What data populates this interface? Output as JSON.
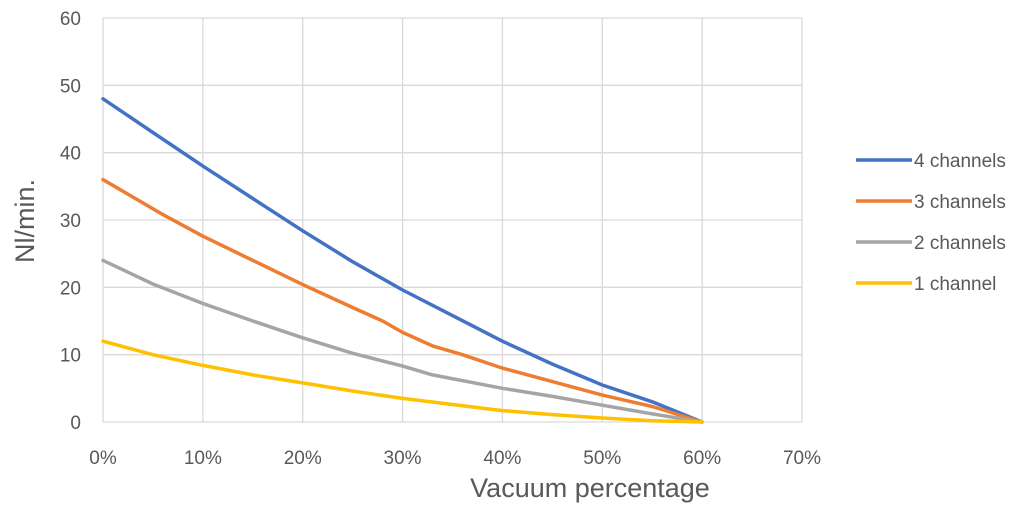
{
  "chart_data": {
    "type": "line",
    "title": "",
    "xlabel": "Vacuum percentage",
    "ylabel": "Nl/min.",
    "xlim": [
      0,
      70
    ],
    "ylim": [
      0,
      60
    ],
    "x_ticks": [
      "0%",
      "10%",
      "20%",
      "30%",
      "40%",
      "50%",
      "60%",
      "70%"
    ],
    "y_ticks": [
      "0",
      "10",
      "20",
      "30",
      "40",
      "50",
      "60"
    ],
    "grid": true,
    "legend_position": "right",
    "series": [
      {
        "name": "4 channels",
        "color": "#4472C4",
        "points": [
          [
            0,
            48
          ],
          [
            5,
            43
          ],
          [
            10,
            38
          ],
          [
            15,
            33.2
          ],
          [
            20,
            28.4
          ],
          [
            25,
            23.8
          ],
          [
            30,
            19.6
          ],
          [
            35,
            15.8
          ],
          [
            40,
            12
          ],
          [
            45,
            8.6
          ],
          [
            50,
            5.5
          ],
          [
            55,
            3
          ],
          [
            60,
            0
          ]
        ]
      },
      {
        "name": "3 channels",
        "color": "#ED7D31",
        "points": [
          [
            0,
            36
          ],
          [
            6,
            30.8
          ],
          [
            10,
            27.6
          ],
          [
            15,
            24
          ],
          [
            20,
            20.4
          ],
          [
            25,
            17
          ],
          [
            28,
            15
          ],
          [
            30,
            13.3
          ],
          [
            33,
            11.3
          ],
          [
            36,
            10
          ],
          [
            40,
            8
          ],
          [
            45,
            6
          ],
          [
            50,
            4
          ],
          [
            55,
            2.3
          ],
          [
            60,
            0
          ]
        ]
      },
      {
        "name": "2 channels",
        "color": "#A5A5A5",
        "points": [
          [
            0,
            24
          ],
          [
            5,
            20.5
          ],
          [
            10,
            17.6
          ],
          [
            15,
            15
          ],
          [
            20,
            12.5
          ],
          [
            25,
            10.2
          ],
          [
            30,
            8.3
          ],
          [
            33,
            7
          ],
          [
            40,
            5
          ],
          [
            45,
            3.8
          ],
          [
            50,
            2.5
          ],
          [
            55,
            1.2
          ],
          [
            60,
            0
          ]
        ]
      },
      {
        "name": "1 channel",
        "color": "#FFC000",
        "points": [
          [
            0,
            12
          ],
          [
            5,
            10
          ],
          [
            10,
            8.4
          ],
          [
            15,
            7
          ],
          [
            20,
            5.8
          ],
          [
            25,
            4.6
          ],
          [
            30,
            3.5
          ],
          [
            35,
            2.6
          ],
          [
            40,
            1.7
          ],
          [
            45,
            1.1
          ],
          [
            50,
            0.6
          ],
          [
            55,
            0.2
          ],
          [
            60,
            0
          ]
        ]
      }
    ]
  }
}
